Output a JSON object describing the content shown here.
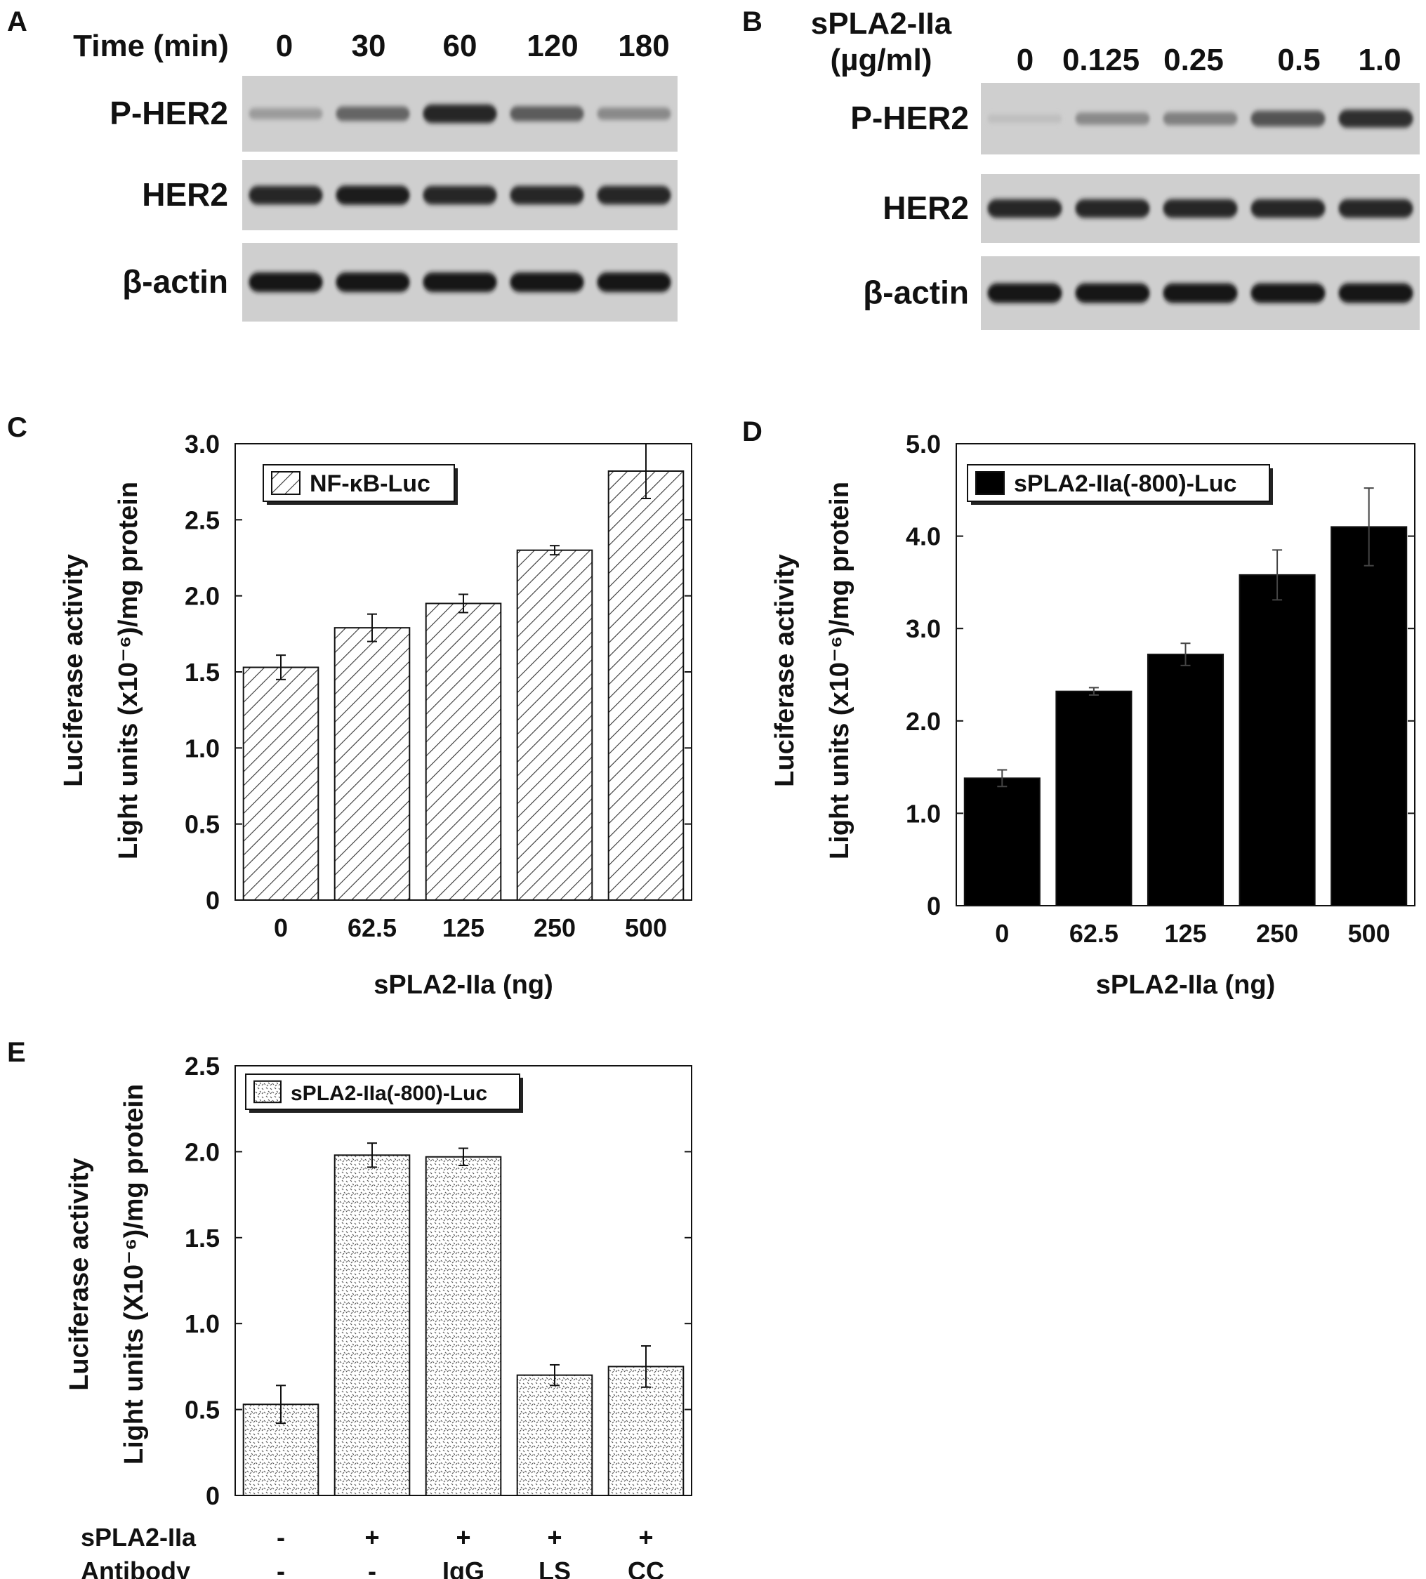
{
  "blots": [
    {
      "panel": "A",
      "header_label": "Time (min)",
      "header_label_lines": [
        "Time (min)"
      ],
      "lanes": [
        "0",
        "30",
        "60",
        "120",
        "180"
      ],
      "rows": [
        {
          "label": "P-HER2",
          "intensity": [
            0.25,
            0.55,
            0.9,
            0.6,
            0.35
          ]
        },
        {
          "label": "HER2",
          "intensity": [
            0.9,
            0.95,
            0.9,
            0.9,
            0.9
          ]
        },
        {
          "label": "β-actin",
          "intensity": [
            1.0,
            1.0,
            1.0,
            1.0,
            1.0
          ]
        }
      ]
    },
    {
      "panel": "B",
      "header_label_lines": [
        "sPLA2-IIa",
        "(µg/ml)"
      ],
      "lanes": [
        "0",
        "0.125",
        "0.25",
        "0.5",
        "1.0"
      ],
      "rows": [
        {
          "label": "P-HER2",
          "intensity": [
            0.05,
            0.35,
            0.4,
            0.65,
            0.85
          ]
        },
        {
          "label": "HER2",
          "intensity": [
            0.9,
            0.9,
            0.9,
            0.9,
            0.9
          ]
        },
        {
          "label": "β-actin",
          "intensity": [
            1.0,
            1.0,
            1.0,
            1.0,
            1.0
          ]
        }
      ]
    }
  ],
  "chart_data": [
    {
      "panel": "C",
      "type": "bar",
      "categories": [
        "0",
        "62.5",
        "125",
        "250",
        "500"
      ],
      "series": [
        {
          "name": "NF-κB-Luc",
          "values": [
            1.53,
            1.79,
            1.95,
            2.3,
            2.82
          ],
          "errors": [
            0.08,
            0.09,
            0.06,
            0.03,
            0.18
          ]
        }
      ],
      "pattern": "hatch",
      "xlabel": "sPLA2-IIa (ng)",
      "ylabel_lines": [
        "Luciferase activity",
        "Light units (x10⁻⁶)/mg protein"
      ],
      "yticks": [
        "0",
        "0.5",
        "1.0",
        "1.5",
        "2.0",
        "2.5",
        "3.0"
      ],
      "ylim": [
        0,
        3.0
      ],
      "legend_position": "top-left"
    },
    {
      "panel": "D",
      "type": "bar",
      "categories": [
        "0",
        "62.5",
        "125",
        "250",
        "500"
      ],
      "series": [
        {
          "name": "sPLA2-IIa(-800)-Luc",
          "values": [
            1.38,
            2.32,
            2.72,
            3.58,
            4.1
          ],
          "errors": [
            0.09,
            0.04,
            0.12,
            0.27,
            0.42
          ]
        }
      ],
      "pattern": "solid",
      "xlabel": "sPLA2-IIa (ng)",
      "ylabel_lines": [
        "Luciferase activity",
        "Light units (x10⁻⁶)/mg protein"
      ],
      "yticks": [
        "0",
        "1.0",
        "2.0",
        "3.0",
        "4.0",
        "5.0"
      ],
      "ylim": [
        0,
        5.0
      ],
      "legend_position": "top-left"
    },
    {
      "panel": "E",
      "type": "bar",
      "categories": [
        "1",
        "2",
        "3",
        "4",
        "5"
      ],
      "series": [
        {
          "name": "sPLA2-IIa(-800)-Luc",
          "values": [
            0.53,
            1.98,
            1.97,
            0.7,
            0.75
          ],
          "errors": [
            0.11,
            0.07,
            0.05,
            0.06,
            0.12
          ]
        }
      ],
      "pattern": "speckle",
      "row_labels": [
        {
          "label": "sPLA2-IIa",
          "values": [
            "-",
            "+",
            "+",
            "+",
            "+"
          ]
        },
        {
          "label": "Antibody",
          "values": [
            "-",
            "-",
            "IgG",
            "LS",
            "CC"
          ]
        }
      ],
      "ylabel_lines": [
        "Luciferase activity",
        "Light units (X10⁻⁶)/mg protein"
      ],
      "yticks": [
        "0",
        "0.5",
        "1.0",
        "1.5",
        "2.0",
        "2.5"
      ],
      "ylim": [
        0,
        2.5
      ],
      "legend_position": "top-left"
    }
  ]
}
